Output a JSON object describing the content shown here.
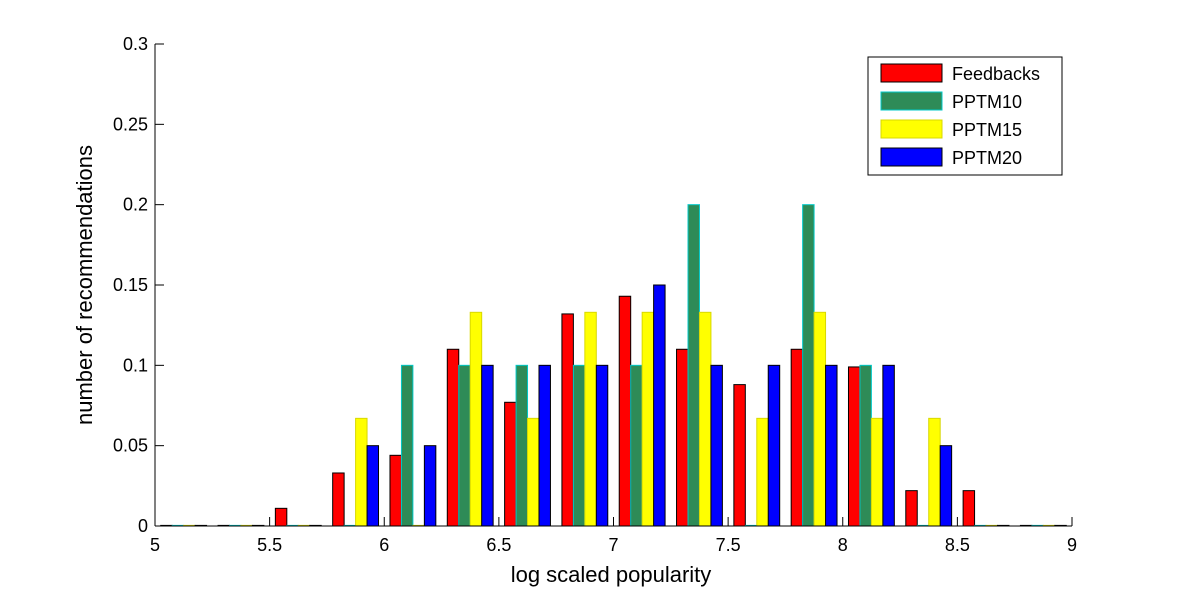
{
  "chart_data": {
    "type": "bar",
    "title": "",
    "xlabel": "log scaled popularity",
    "ylabel": "number of recommendations",
    "xlim": [
      5,
      9
    ],
    "ylim": [
      0,
      0.3
    ],
    "xticks": [
      "5",
      "5.5",
      "6",
      "6.5",
      "7",
      "7.5",
      "8",
      "8.5",
      "9"
    ],
    "yticks": [
      "0",
      "0.05",
      "0.1",
      "0.15",
      "0.2",
      "0.25",
      "0.3"
    ],
    "bin_centers": [
      5.125,
      5.375,
      5.625,
      5.875,
      6.125,
      6.375,
      6.625,
      6.875,
      7.125,
      7.375,
      7.625,
      7.875,
      8.125,
      8.375,
      8.625,
      8.875
    ],
    "grid": false,
    "legend_position": "top-right",
    "series": [
      {
        "name": "Feedbacks",
        "color": "#ff0000",
        "edge": "#000000",
        "values": [
          0,
          0,
          0.011,
          0.033,
          0.044,
          0.11,
          0.077,
          0.132,
          0.143,
          0.11,
          0.088,
          0.11,
          0.099,
          0.022,
          0.022,
          0
        ]
      },
      {
        "name": "PPTM10",
        "color": "#2e8b57",
        "edge": "#00c8c8",
        "values": [
          0,
          0,
          0,
          0,
          0.1,
          0.1,
          0.1,
          0.1,
          0.1,
          0.2,
          0,
          0.2,
          0.1,
          0,
          0,
          0
        ]
      },
      {
        "name": "PPTM15",
        "color": "#ffff00",
        "edge": "#d8d800",
        "values": [
          0,
          0,
          0,
          0.067,
          0,
          0.133,
          0.067,
          0.133,
          0.133,
          0.133,
          0.067,
          0.133,
          0.067,
          0.067,
          0,
          0
        ]
      },
      {
        "name": "PPTM20",
        "color": "#0000ff",
        "edge": "#000000",
        "values": [
          0,
          0,
          0,
          0.05,
          0.05,
          0.1,
          0.1,
          0.1,
          0.15,
          0.1,
          0.1,
          0.1,
          0.1,
          0.05,
          0,
          0
        ]
      }
    ]
  }
}
